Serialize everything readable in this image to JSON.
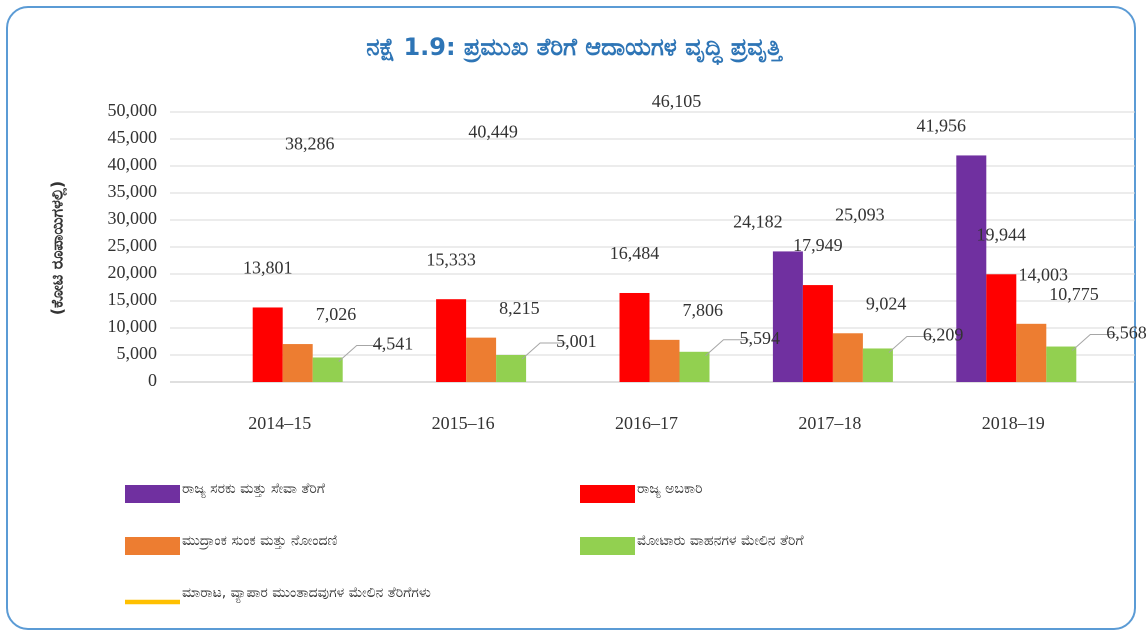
{
  "chart_data": {
    "type": "bar",
    "title": "ನಕ್ಷೆ 1.9: ಪ್ರಮುಖ ತೆರಿಗೆ ಆದಾಯಗಳ ವೃದ್ಧಿ ಪ್ರವೃತ್ತಿ",
    "ylabel": "(ಕೋಟಿ ರೂಪಾಯಿಗಳಲ್ಲಿ)",
    "categories": [
      "2014–15",
      "2015–16",
      "2016–17",
      "2017–18",
      "2018–19"
    ],
    "ylim": [
      0,
      50000
    ],
    "yticks": [
      0,
      {
        "value": 5000,
        "label": "5,000"
      },
      {
        "value": 10000,
        "label": "10,000"
      },
      {
        "value": 15000,
        "label": "15,000"
      },
      {
        "value": 20000,
        "label": "20,000"
      },
      {
        "value": 25000,
        "label": "25,000"
      },
      {
        "value": 30000,
        "label": "30,000"
      },
      {
        "value": 35000,
        "label": "35,000"
      },
      {
        "value": 40000,
        "label": "40,000"
      },
      {
        "value": 45000,
        "label": "45,000"
      },
      {
        "value": 50000,
        "label": "50,000"
      }
    ],
    "grid": true,
    "series": [
      {
        "name": "ರಾಜ್ಯ ಸರಕು ಮತ್ತು ಸೇವಾ ತೆರಿಗೆ",
        "type": "bar",
        "color": "#7030a0",
        "values": [
          null,
          null,
          null,
          24182,
          41956
        ],
        "value_labels": [
          null,
          null,
          null,
          "24,182",
          "41,956"
        ]
      },
      {
        "name": "ರಾಜ್ಯ ಅಬಕಾರಿ",
        "type": "bar",
        "color": "#ff0000",
        "values": [
          13801,
          15333,
          16484,
          17949,
          19944
        ],
        "value_labels": [
          "13,801",
          "15,333",
          "16,484",
          "17,949",
          "19,944"
        ]
      },
      {
        "name": "ಮುದ್ರಾಂಕ ಸುಂಕ ಮತ್ತು ನೋಂದಣಿ",
        "type": "bar",
        "color": "#ed7d31",
        "values": [
          7026,
          8215,
          7806,
          9024,
          10775
        ],
        "value_labels": [
          "7,026",
          "8,215",
          "7,806",
          "9,024",
          "10,775"
        ]
      },
      {
        "name": "ಮೋಟಾರು ವಾಹನಗಳ ಮೇಲಿನ ತೆರಿಗೆ",
        "type": "bar",
        "color": "#92d050",
        "values": [
          4541,
          5001,
          5594,
          6209,
          6568
        ],
        "value_labels": [
          "4,541",
          "5,001",
          "5,594",
          "6,209",
          "6,568"
        ]
      },
      {
        "name": "ಮಾರಾಟ, ವ್ಯಾಪಾರ ಮುಂತಾದವುಗಳ ಮೇಲಿನ ತೆರಿಗೆಗಳು",
        "type": "line",
        "color": "#ffc000",
        "values": [
          38286,
          40449,
          46105,
          25093,
          14003
        ],
        "value_labels": [
          "38,286",
          "40,449",
          "46,105",
          "25,093",
          "14,003"
        ]
      }
    ]
  }
}
